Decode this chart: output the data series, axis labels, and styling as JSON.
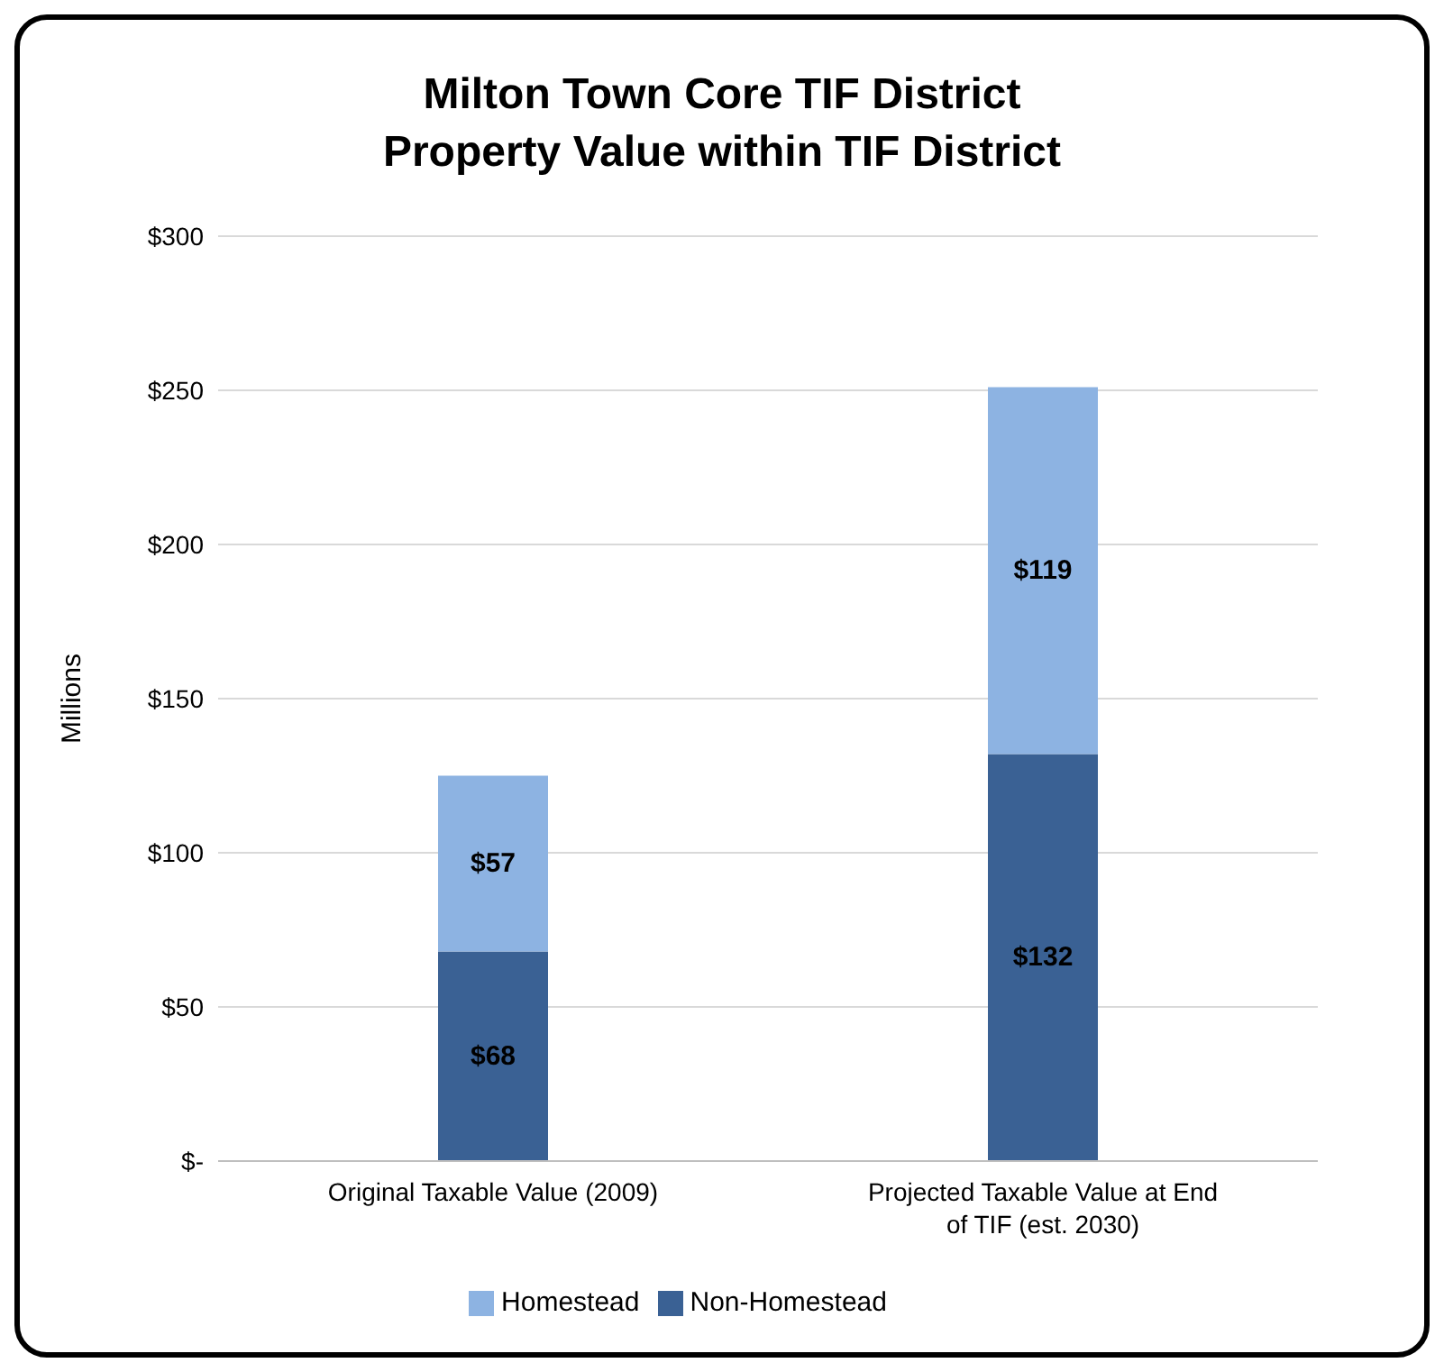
{
  "chart_data": {
    "type": "bar",
    "title": "Milton Town Core TIF District\nProperty Value within TIF District",
    "ylabel": "Millions",
    "categories": [
      "Original Taxable Value (2009)",
      "Projected Taxable Value at End of TIF (est. 2030)"
    ],
    "stacked": true,
    "series": [
      {
        "name": "Non-Homestead",
        "color": "#3a6194",
        "values": [
          68,
          132
        ],
        "value_labels": [
          "$68",
          "$132"
        ]
      },
      {
        "name": "Homestead",
        "color": "#8db3e2",
        "values": [
          57,
          119
        ],
        "value_labels": [
          "$57",
          "$119"
        ]
      }
    ],
    "ylim": [
      0,
      300
    ],
    "yticks": [
      {
        "value": 0,
        "label": "$-"
      },
      {
        "value": 50,
        "label": "$50"
      },
      {
        "value": 100,
        "label": "$100"
      },
      {
        "value": 150,
        "label": "$150"
      },
      {
        "value": 200,
        "label": "$200"
      },
      {
        "value": 250,
        "label": "$250"
      },
      {
        "value": 300,
        "label": "$300"
      }
    ],
    "grid": "y",
    "legend": "bottom"
  }
}
